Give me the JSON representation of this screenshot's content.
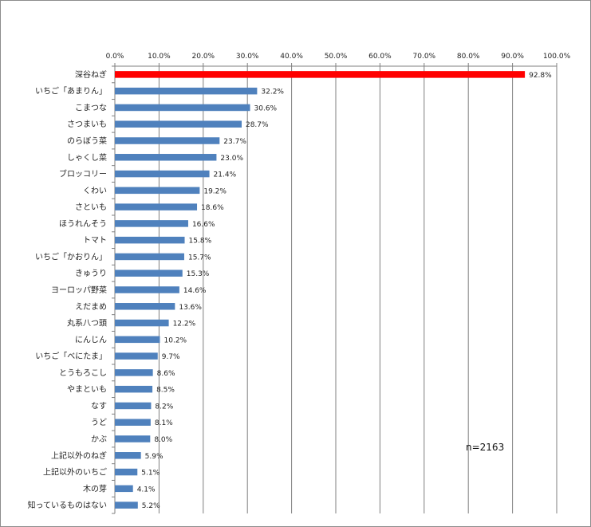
{
  "chart_data": {
    "type": "bar",
    "orientation": "horizontal",
    "title": "",
    "xlabel": "",
    "ylabel": "",
    "xlim": [
      0,
      100
    ],
    "tick_labels": [
      "0.0%",
      "10.0%",
      "20.0%",
      "30.0%",
      "40.0%",
      "50.0%",
      "60.0%",
      "70.0%",
      "80.0%",
      "90.0%",
      "100.0%"
    ],
    "categories": [
      "深谷ねぎ",
      "いちご「あまりん」",
      "こまつな",
      "さつまいも",
      "のらぼう菜",
      "しゃくし菜",
      "ブロッコリー",
      "くわい",
      "さといも",
      "ほうれんそう",
      "トマト",
      "いちご「かおりん」",
      "きゅうり",
      "ヨーロッパ野菜",
      "えだまめ",
      "丸系八つ頭",
      "にんじん",
      "いちご「べにたま」",
      "とうもろこし",
      "やまといも",
      "なす",
      "うど",
      "かぶ",
      "上記以外のねぎ",
      "上記以外のいちご",
      "木の芽",
      "知っているものはない"
    ],
    "values": [
      92.8,
      32.2,
      30.6,
      28.7,
      23.7,
      23.0,
      21.4,
      19.2,
      18.6,
      16.6,
      15.8,
      15.7,
      15.3,
      14.6,
      13.6,
      12.2,
      10.2,
      9.7,
      8.6,
      8.5,
      8.2,
      8.1,
      8.0,
      5.9,
      5.1,
      4.1,
      5.2
    ],
    "data_labels": [
      "92.8%",
      "32.2%",
      "30.6%",
      "28.7%",
      "23.7%",
      "23.0%",
      "21.4%",
      "19.2%",
      "18.6%",
      "16.6%",
      "15.8%",
      "15.7%",
      "15.3%",
      "14.6%",
      "13.6%",
      "12.2%",
      "10.2%",
      "9.7%",
      "8.6%",
      "8.5%",
      "8.2%",
      "8.1%",
      "8.0%",
      "5.9%",
      "5.1%",
      "4.1%",
      "5.2%"
    ],
    "highlight_index": 0,
    "grid": true,
    "legend": "none",
    "colors": {
      "bar": "#4f81bd",
      "highlight": "#ff0000"
    }
  },
  "annotation": "n=2163"
}
